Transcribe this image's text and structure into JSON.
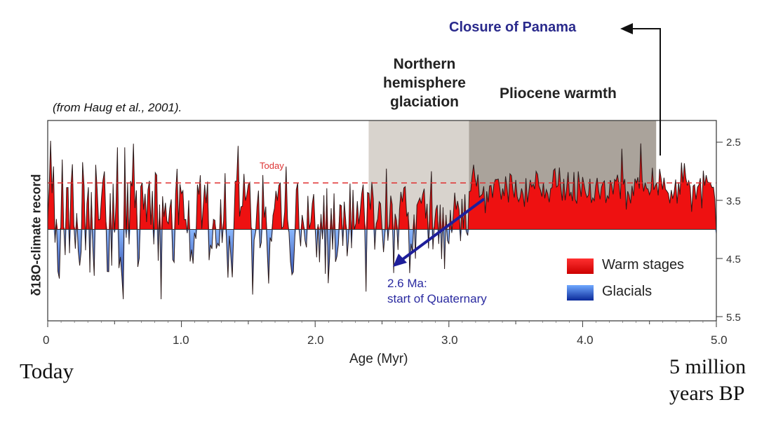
{
  "chart_data": {
    "type": "area",
    "title": "",
    "xlabel": "Age (Myr)",
    "ylabel": "δ18O-climate record",
    "xlim": [
      0,
      5.0
    ],
    "ylim": [
      2.5,
      5.5
    ],
    "y_inverted": true,
    "x_ticks": [
      "0",
      "1.0",
      "2.0",
      "3.0",
      "4.0",
      "5.0"
    ],
    "y_ticks": [
      "2.5",
      "3.5",
      "4.5",
      "5.5"
    ],
    "baseline": 4.0,
    "today_level": 3.2,
    "today_label": "Today",
    "series": [
      {
        "name": "Warm stages",
        "color": "#ee1111"
      },
      {
        "name": "Glacials",
        "color": "#2255cc"
      }
    ],
    "shaded_periods": [
      {
        "label": "Northern hemisphere glaciation",
        "x": [
          2.4,
          3.15
        ],
        "color": "#d8d3cd"
      },
      {
        "label": "Pliocene warmth",
        "x": [
          3.15,
          4.55
        ],
        "color": "#aaa39b"
      }
    ],
    "annotations": {
      "panama": "Closure of Panama",
      "quaternary_line1": "2.6 Ma:",
      "quaternary_line2": "start of Quaternary"
    },
    "citation": "(from Haug et al., 2001).",
    "caption_left": "Today",
    "caption_right_line1": "5 million",
    "caption_right_line2": "years BP"
  }
}
